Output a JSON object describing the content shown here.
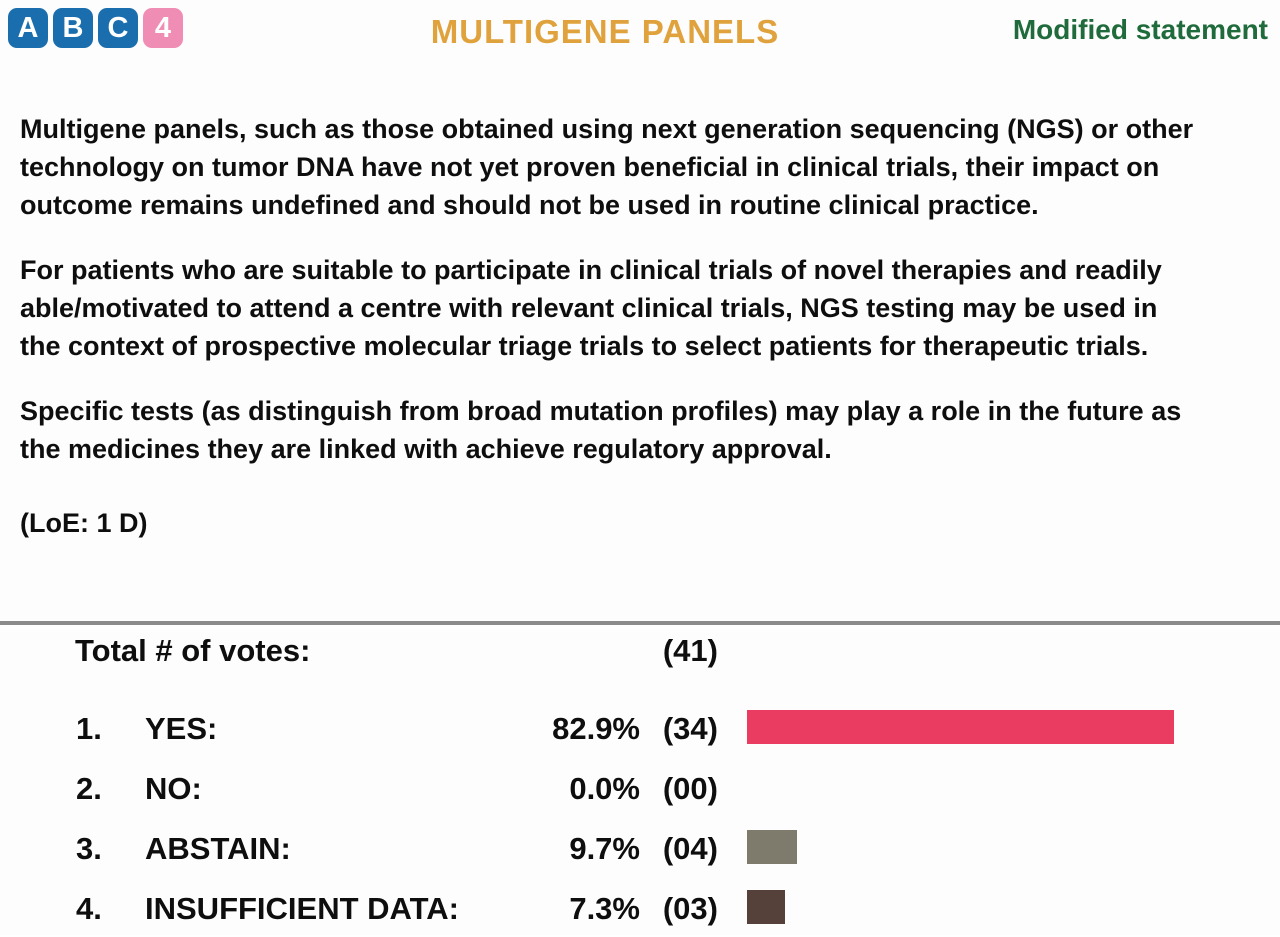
{
  "header": {
    "logo": {
      "name": "ABC4",
      "tiles": [
        {
          "char": "A",
          "color": "#1b6ead"
        },
        {
          "char": "B",
          "color": "#1b6ead"
        },
        {
          "char": "C",
          "color": "#1b6ead"
        },
        {
          "char": "4",
          "color": "#ef8db4"
        }
      ]
    },
    "title": "MULTIGENE PANELS",
    "title_color": "#e0a23c",
    "status": "Modified statement",
    "status_color": "#1f6b3b"
  },
  "statement": {
    "paragraphs": [
      "Multigene panels, such as those obtained using next generation sequencing (NGS) or other technology on tumor DNA have not yet proven beneficial in clinical trials, their impact on outcome remains undefined and should not be used in routine clinical practice.",
      "For patients who are suitable to participate in clinical trials of novel therapies and readily able/motivated to attend a centre with relevant clinical trials, NGS testing may be used in the context of prospective molecular triage trials to select patients for therapeutic trials.",
      "Specific tests (as distinguish from broad mutation profiles) may play a role in the future as the medicines they are linked with achieve regulatory approval."
    ],
    "loe": "(LoE: 1 D)"
  },
  "divider_color": "#8a8a8a",
  "votes": {
    "total_label": "Total # of votes:",
    "total_count": "(41)",
    "options": [
      {
        "num": "1.",
        "label": "YES:",
        "pct": "82.9%",
        "pct_value": 82.9,
        "count": "(34)",
        "bar_color": "#ea3b60"
      },
      {
        "num": "2.",
        "label": "NO:",
        "pct": "0.0%",
        "pct_value": 0.0,
        "count": "(00)",
        "bar_color": "#ea3b60"
      },
      {
        "num": "3.",
        "label": "ABSTAIN:",
        "pct": "9.7%",
        "pct_value": 9.7,
        "count": "(04)",
        "bar_color": "#7e7a6c"
      },
      {
        "num": "4.",
        "label": "INSUFFICIENT DATA:",
        "pct": "7.3%",
        "pct_value": 7.3,
        "count": "(03)",
        "bar_color": "#56413a"
      }
    ]
  },
  "chart_data": {
    "type": "bar",
    "orientation": "horizontal",
    "title": "MULTIGENE PANELS vote results",
    "categories": [
      "YES",
      "NO",
      "ABSTAIN",
      "INSUFFICIENT DATA"
    ],
    "values": [
      82.9,
      0.0,
      9.7,
      7.3
    ],
    "counts": [
      34,
      0,
      4,
      3
    ],
    "total_votes": 41,
    "value_unit": "%",
    "xlim": [
      0,
      100
    ],
    "bar_colors": [
      "#ea3b60",
      "#ea3b60",
      "#7e7a6c",
      "#56413a"
    ]
  }
}
